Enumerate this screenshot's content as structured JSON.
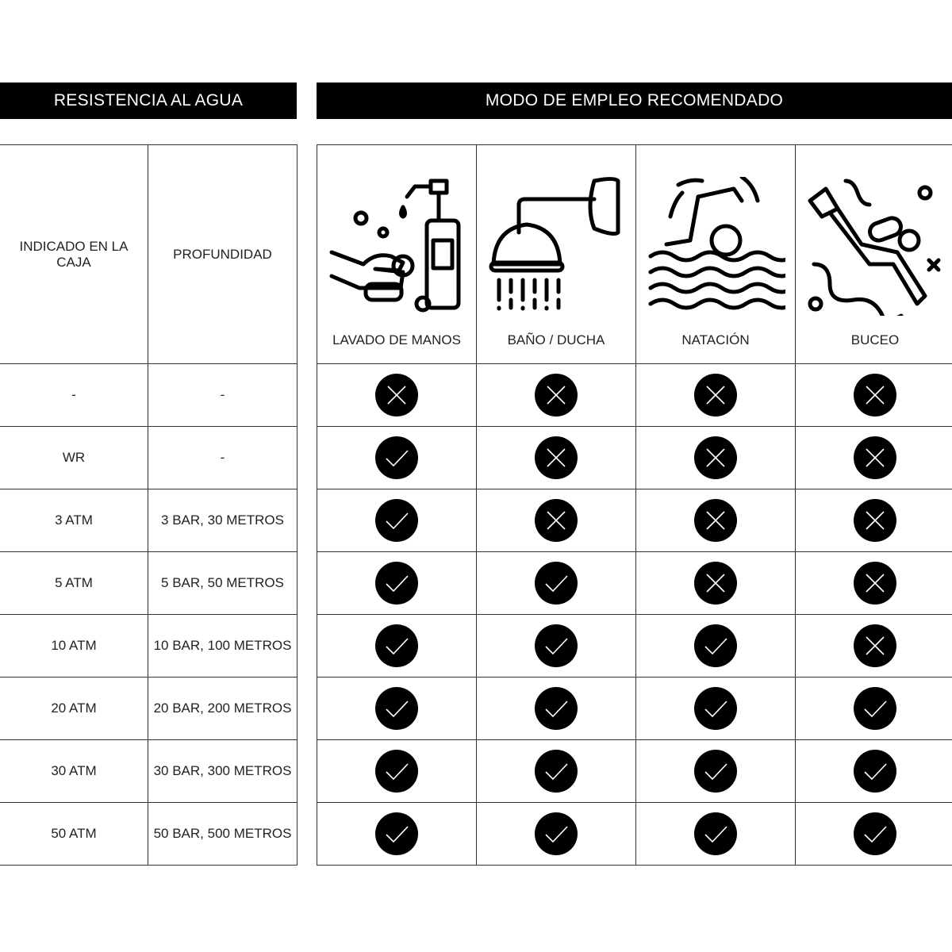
{
  "headers": {
    "left": "RESISTENCIA AL AGUA",
    "right": "MODO DE EMPLEO RECOMENDADO"
  },
  "columns": {
    "indicated": "INDICADO EN LA CAJA",
    "depth": "PROFUNDIDAD",
    "uses": [
      {
        "label": "LAVADO DE MANOS",
        "icon": "hand-washing-icon"
      },
      {
        "label": "BAÑO / DUCHA",
        "icon": "shower-icon"
      },
      {
        "label": "NATACIÓN",
        "icon": "swimming-icon"
      },
      {
        "label": "BUCEO",
        "icon": "diving-icon"
      }
    ]
  },
  "rows": [
    {
      "indicated": "-",
      "depth": "-",
      "status": [
        "no",
        "no",
        "no",
        "no"
      ]
    },
    {
      "indicated": "WR",
      "depth": "-",
      "status": [
        "yes",
        "no",
        "no",
        "no"
      ]
    },
    {
      "indicated": "3 ATM",
      "depth": "3 BAR, 30 METROS",
      "status": [
        "yes",
        "no",
        "no",
        "no"
      ]
    },
    {
      "indicated": "5 ATM",
      "depth": "5 BAR, 50 METROS",
      "status": [
        "yes",
        "yes",
        "no",
        "no"
      ]
    },
    {
      "indicated": "10 ATM",
      "depth": "10 BAR, 100 METROS",
      "status": [
        "yes",
        "yes",
        "yes",
        "no"
      ]
    },
    {
      "indicated": "20 ATM",
      "depth": "20 BAR, 200 METROS",
      "status": [
        "yes",
        "yes",
        "yes",
        "yes"
      ]
    },
    {
      "indicated": "30 ATM",
      "depth": "30 BAR, 300 METROS",
      "status": [
        "yes",
        "yes",
        "yes",
        "yes"
      ]
    },
    {
      "indicated": "50 ATM",
      "depth": "50 BAR, 500 METROS",
      "status": [
        "yes",
        "yes",
        "yes",
        "yes"
      ]
    }
  ],
  "colors": {
    "header_bg": "#000000",
    "mark_bg": "#000000",
    "mark_stroke": "#ffffff",
    "border": "#333333"
  }
}
